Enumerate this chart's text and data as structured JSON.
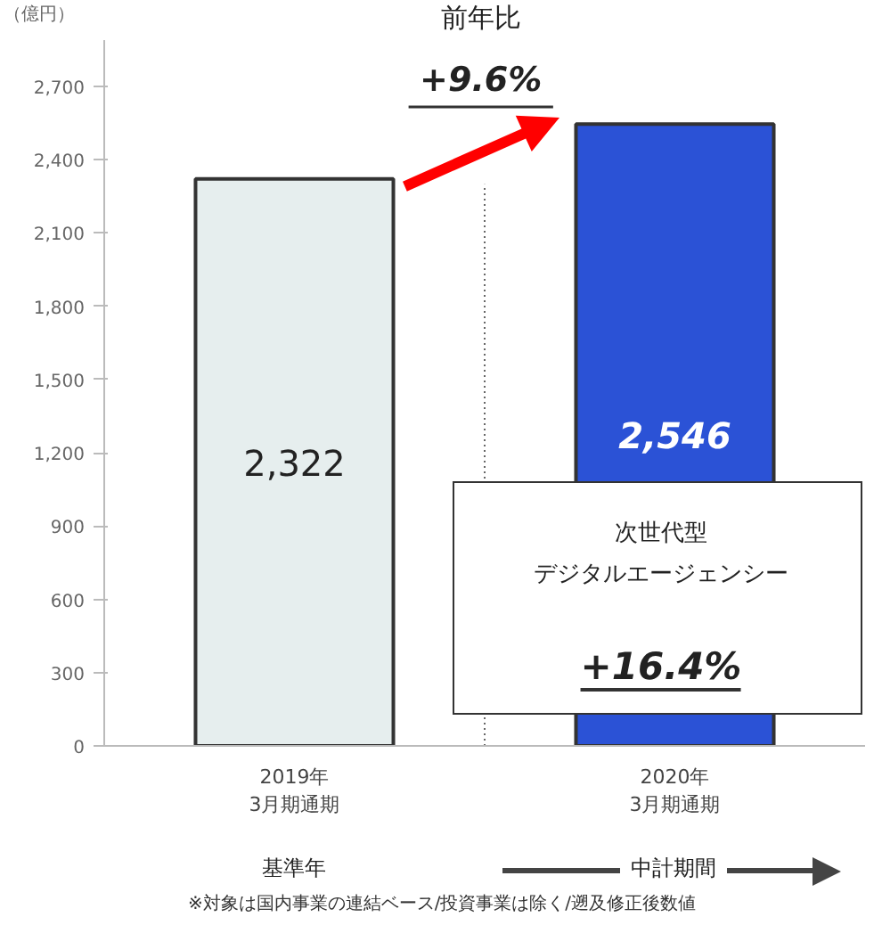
{
  "chart_data": {
    "type": "bar",
    "ylabel": "（億円）",
    "categories": [
      "2019年\n3月期通期",
      "2020年\n3月期通期"
    ],
    "values": [
      2322,
      2546
    ],
    "colors": [
      "#e6eeee",
      "#2b52d6"
    ],
    "value_labels": [
      "2,322",
      "2,546"
    ],
    "ylim": [
      0,
      2890
    ],
    "yticks": [
      0,
      300,
      600,
      900,
      {
        "value": 1200,
        "label": "1,200"
      },
      {
        "value": 1500,
        "label": "1,500"
      },
      {
        "value": 1800,
        "label": "1,800"
      },
      {
        "value": 2100,
        "label": "2,100"
      },
      {
        "value": 2400,
        "label": "2,400"
      },
      {
        "value": 2700,
        "label": "2,700"
      }
    ],
    "grid": false,
    "annotations": [
      "前年比",
      "+9.6%",
      "次世代型",
      "デジタルエージェンシー",
      "+16.4%",
      "基準年",
      "中計期間",
      "※対象は国内事業の連結ベース/投資事業は除く/遡及修正後数値"
    ]
  }
}
